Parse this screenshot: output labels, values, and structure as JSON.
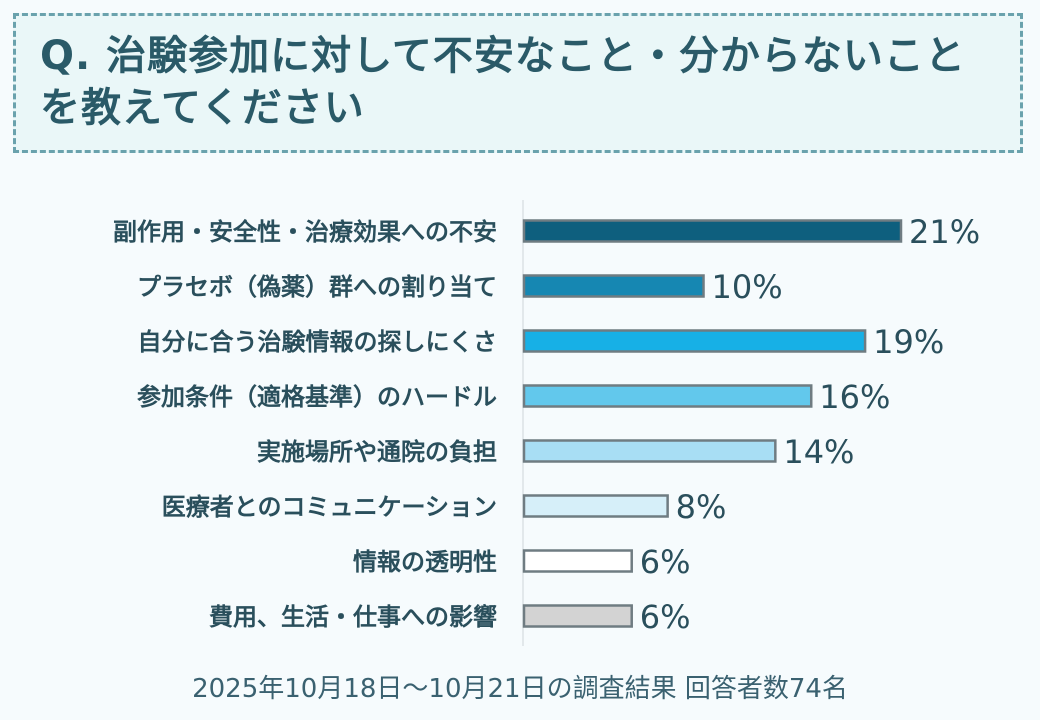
{
  "title": "Q. 治験参加に対して不安なこと・分からないことを教えてください",
  "footer": "2025年10月18日〜10月21日の調査結果  回答者数74名",
  "chart_data": {
    "type": "bar",
    "orientation": "horizontal",
    "title": "Q. 治験参加に対して不安なこと・分からないことを教えてください",
    "xlabel": "",
    "ylabel": "",
    "xlim": [
      0,
      21
    ],
    "grid": false,
    "legend": "none",
    "value_suffix": "%",
    "categories": [
      "副作用・安全性・治療効果への不安",
      "プラセボ（偽薬）群への割り当て",
      "自分に合う治験情報の探しにくさ",
      "参加条件（適格基準）のハードル",
      "実施場所や通院の負担",
      "医療者とのコミュニケーション",
      "情報の透明性",
      "費用、生活・仕事への影響"
    ],
    "values": [
      21,
      10,
      19,
      16,
      14,
      8,
      6,
      6
    ],
    "bar_colors": [
      "#0e5f7e",
      "#1687b2",
      "#17b0e6",
      "#62c8ec",
      "#a8def4",
      "#d6eff9",
      "#ffffff",
      "#d3d3d3"
    ],
    "bar_border": "#6f7c82",
    "axis_color": "#cfd6d9",
    "label_color": "#2a4f5c"
  }
}
